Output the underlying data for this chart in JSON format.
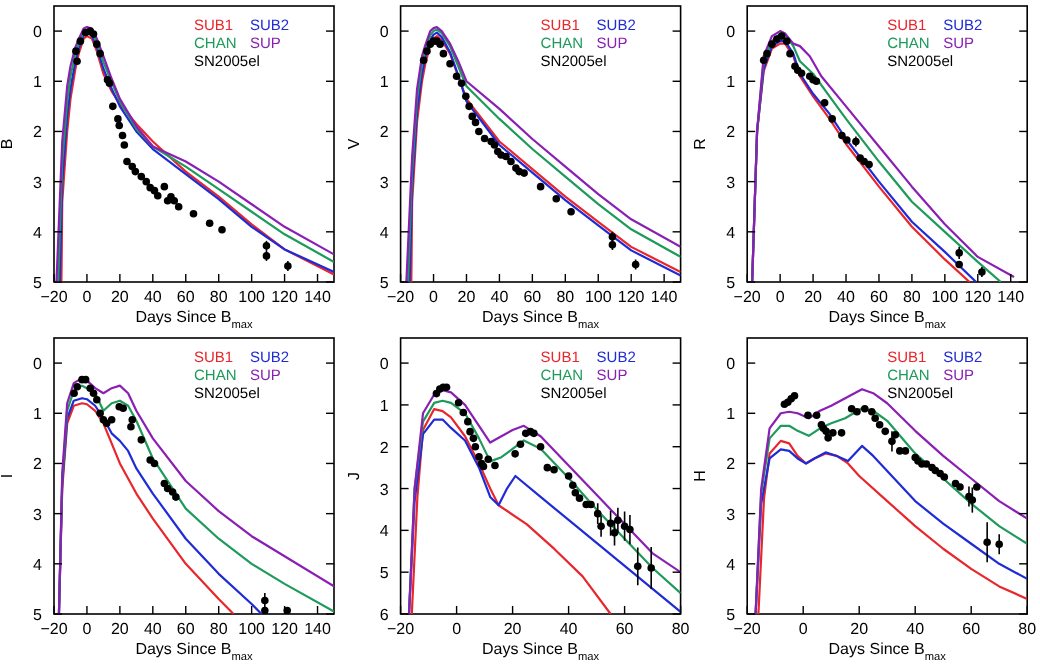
{
  "chart_data": [
    {
      "type": "line",
      "xlabel": "Days Since B$_{max}$",
      "ylabel": "B",
      "xlim": [
        -20,
        150
      ],
      "ylim": [
        5,
        -0.5
      ],
      "xticks": [
        -20,
        0,
        20,
        40,
        60,
        80,
        100,
        120,
        140
      ],
      "yticks": [
        0,
        1,
        2,
        3,
        4,
        5
      ],
      "legend": "top right",
      "series": [
        {
          "name": "SUB1",
          "color": "#e8262b",
          "x": [
            -15.5,
            -15,
            -12,
            -10,
            -7,
            -5,
            -2,
            0,
            3,
            6,
            10,
            15,
            20,
            30,
            40,
            60,
            80,
            100,
            120,
            150
          ],
          "values": [
            5,
            3.4,
            2.0,
            1.35,
            0.75,
            0.45,
            0.15,
            0.1,
            0.15,
            0.4,
            0.85,
            1.2,
            1.45,
            1.85,
            2.2,
            2.8,
            3.3,
            3.85,
            4.35,
            4.85
          ]
        },
        {
          "name": "SUB2",
          "color": "#1f2bd6",
          "x": [
            -16.5,
            -15,
            -12,
            -10,
            -7,
            -5,
            -2,
            0,
            3,
            6,
            10,
            15,
            20,
            30,
            40,
            60,
            80,
            100,
            120,
            150
          ],
          "values": [
            5,
            3.0,
            1.7,
            1.15,
            0.6,
            0.36,
            0.08,
            0.04,
            0.09,
            0.32,
            0.75,
            1.15,
            1.5,
            2.0,
            2.35,
            2.85,
            3.35,
            3.9,
            4.35,
            4.8
          ]
        },
        {
          "name": "CHAN",
          "color": "#1e9a5a",
          "x": [
            -17.5,
            -15,
            -12,
            -10,
            -7,
            -5,
            -2,
            0,
            3,
            6,
            10,
            15,
            20,
            30,
            40,
            60,
            80,
            100,
            120,
            150
          ],
          "values": [
            5,
            2.6,
            1.4,
            0.9,
            0.45,
            0.26,
            0.02,
            -0.02,
            0.02,
            0.24,
            0.62,
            1.02,
            1.4,
            1.95,
            2.3,
            2.7,
            3.15,
            3.6,
            4.05,
            4.6
          ]
        },
        {
          "name": "SUP",
          "color": "#8a1fb4",
          "x": [
            -18.5,
            -15,
            -12,
            -10,
            -7,
            -5,
            -2,
            0,
            3,
            6,
            10,
            15,
            20,
            30,
            40,
            60,
            80,
            100,
            120,
            150
          ],
          "values": [
            5,
            2.2,
            1.1,
            0.7,
            0.32,
            0.16,
            -0.05,
            -0.08,
            -0.05,
            0.15,
            0.5,
            0.95,
            1.35,
            1.9,
            2.3,
            2.6,
            3.0,
            3.45,
            3.9,
            4.45
          ]
        },
        {
          "name": "SN2005el",
          "color": "#000000",
          "type": "scatter",
          "marker": "circle",
          "x": [
            -6.7,
            -6,
            -4,
            -0.8,
            2,
            4,
            6,
            8,
            12.5,
            13.7,
            15.7,
            18.8,
            19.6,
            21.6,
            22.7,
            24.3,
            27.5,
            29.4,
            33,
            36,
            38.4,
            41,
            43,
            47,
            49,
            51,
            53,
            55.7,
            64.7,
            74.5,
            82,
            109,
            109,
            122
          ],
          "values": [
            0.4,
            0.6,
            0.2,
            0.03,
            0,
            0.06,
            0.26,
            0.45,
            0.97,
            1.04,
            1.5,
            1.75,
            1.88,
            2.08,
            2.27,
            2.6,
            2.7,
            2.8,
            2.9,
            3.0,
            3.12,
            3.18,
            3.28,
            3.1,
            3.38,
            3.3,
            3.38,
            3.5,
            3.64,
            3.83,
            3.96,
            4.28,
            4.48,
            4.68
          ],
          "errors": [
            null,
            null,
            null,
            null,
            null,
            null,
            null,
            null,
            null,
            null,
            null,
            null,
            null,
            null,
            null,
            null,
            null,
            null,
            null,
            null,
            null,
            null,
            null,
            null,
            null,
            null,
            null,
            null,
            null,
            null,
            null,
            0.1,
            0.1,
            0.1
          ]
        }
      ]
    },
    {
      "type": "line",
      "xlabel": "Days Since B$_{max}$",
      "ylabel": "V",
      "xlim": [
        -20,
        150
      ],
      "ylim": [
        5,
        -0.5
      ],
      "xticks": [
        -20,
        0,
        20,
        40,
        60,
        80,
        100,
        120,
        140
      ],
      "yticks": [
        0,
        1,
        2,
        3,
        4,
        5
      ],
      "legend": "top right",
      "series": [
        {
          "name": "SUB1",
          "color": "#e8262b",
          "x": [
            -13.5,
            -13,
            -10,
            -7,
            -5,
            -2,
            0,
            2,
            5,
            10,
            15,
            20,
            40,
            60,
            80,
            100,
            120,
            150
          ],
          "values": [
            5,
            3.4,
            1.8,
            1.0,
            0.65,
            0.28,
            0.15,
            0.1,
            0.18,
            0.45,
            0.9,
            1.35,
            2.2,
            2.75,
            3.3,
            3.8,
            4.3,
            4.8
          ]
        },
        {
          "name": "SUB2",
          "color": "#1f2bd6",
          "x": [
            -14.5,
            -13,
            -10,
            -7,
            -5,
            -2,
            0,
            2,
            5,
            10,
            15,
            20,
            40,
            60,
            80,
            100,
            120,
            150
          ],
          "values": [
            5,
            3.1,
            1.6,
            0.85,
            0.52,
            0.18,
            0.07,
            0.03,
            0.12,
            0.42,
            0.88,
            1.4,
            2.27,
            2.82,
            3.37,
            3.87,
            4.37,
            4.87
          ]
        },
        {
          "name": "CHAN",
          "color": "#1e9a5a",
          "x": [
            -15.5,
            -13,
            -10,
            -7,
            -5,
            -2,
            0,
            2,
            5,
            10,
            15,
            20,
            40,
            60,
            80,
            100,
            120,
            150
          ],
          "values": [
            5,
            2.8,
            1.35,
            0.65,
            0.38,
            0.08,
            0,
            -0.03,
            0.04,
            0.3,
            0.7,
            1.1,
            1.75,
            2.35,
            2.9,
            3.45,
            3.95,
            4.5
          ]
        },
        {
          "name": "SUP",
          "color": "#8a1fb4",
          "x": [
            -16.5,
            -13,
            -10,
            -7,
            -5,
            -2,
            0,
            2,
            5,
            10,
            15,
            20,
            40,
            60,
            80,
            100,
            120,
            150
          ],
          "values": [
            5,
            2.5,
            1.15,
            0.5,
            0.28,
            0.0,
            -0.06,
            -0.08,
            0,
            0.25,
            0.6,
            1.0,
            1.55,
            2.15,
            2.7,
            3.25,
            3.75,
            4.3
          ]
        },
        {
          "name": "SN2005el",
          "color": "#000000",
          "type": "scatter",
          "marker": "circle",
          "x": [
            -6,
            -4,
            -2,
            0,
            2,
            4,
            6,
            10,
            14,
            17,
            19.6,
            21.6,
            23.5,
            25.5,
            27.5,
            31,
            35,
            37,
            39,
            41,
            44,
            47,
            50,
            52,
            55,
            65,
            74.5,
            83.5,
            108.6,
            108.6,
            122.7
          ],
          "values": [
            0.58,
            0.4,
            0.26,
            0.2,
            0.2,
            0.26,
            0.45,
            0.65,
            0.9,
            1.04,
            1.3,
            1.5,
            1.7,
            1.82,
            2.0,
            2.14,
            2.2,
            2.27,
            2.4,
            2.47,
            2.5,
            2.6,
            2.73,
            2.8,
            2.83,
            3.1,
            3.34,
            3.6,
            4.1,
            4.26,
            4.65
          ],
          "errors": [
            null,
            null,
            null,
            null,
            null,
            null,
            null,
            null,
            null,
            null,
            null,
            null,
            null,
            null,
            null,
            null,
            null,
            null,
            null,
            null,
            null,
            null,
            null,
            null,
            null,
            null,
            null,
            null,
            0.1,
            0.1,
            0.1
          ]
        }
      ]
    },
    {
      "type": "line",
      "xlabel": "Days Since B$_{max}$",
      "ylabel": "R",
      "xlim": [
        -20,
        150
      ],
      "ylim": [
        5,
        -0.5
      ],
      "xticks": [
        -20,
        0,
        20,
        40,
        60,
        80,
        100,
        120,
        140
      ],
      "yticks": [
        0,
        1,
        2,
        3,
        4,
        5
      ],
      "legend": "top right",
      "series": [
        {
          "name": "SUB1",
          "color": "#e8262b",
          "x": [
            -17,
            -14,
            -10,
            -5,
            0,
            3,
            8,
            12,
            20,
            30,
            40,
            60,
            80,
            100,
            115
          ],
          "values": [
            5,
            2,
            0.8,
            0.35,
            0.25,
            0.25,
            0.5,
            0.9,
            1.3,
            1.75,
            2.25,
            3.1,
            3.9,
            4.55,
            5
          ]
        },
        {
          "name": "SUB2",
          "color": "#1f2bd6",
          "x": [
            -17,
            -14,
            -10,
            -5,
            0,
            3,
            8,
            12,
            20,
            30,
            40,
            60,
            80,
            100,
            119
          ],
          "values": [
            5,
            2,
            0.75,
            0.3,
            0.2,
            0.2,
            0.45,
            0.85,
            1.25,
            1.65,
            2.15,
            3.0,
            3.8,
            4.4,
            5
          ]
        },
        {
          "name": "CHAN",
          "color": "#1e9a5a",
          "x": [
            -17,
            -14,
            -10,
            -5,
            0,
            3,
            8,
            12,
            20,
            30,
            40,
            60,
            80,
            100,
            120,
            134
          ],
          "values": [
            5,
            2,
            0.6,
            0.2,
            0.05,
            0.05,
            0.3,
            0.6,
            0.85,
            1.3,
            1.75,
            2.6,
            3.4,
            4.0,
            4.6,
            5
          ]
        },
        {
          "name": "SUP",
          "color": "#8a1fb4",
          "x": [
            -17,
            -14,
            -10,
            -5,
            0,
            3,
            8,
            12,
            18,
            25,
            40,
            60,
            80,
            100,
            120,
            142
          ],
          "values": [
            5,
            2,
            0.5,
            0.1,
            0,
            0.05,
            0.25,
            0.3,
            0.5,
            0.9,
            1.5,
            2.3,
            3.1,
            3.85,
            4.5,
            4.9
          ]
        },
        {
          "name": "SN2005el",
          "color": "#000000",
          "type": "scatter",
          "marker": "circle",
          "x": [
            -10,
            -8,
            -5,
            -2,
            1,
            4,
            6,
            9,
            10.7,
            13,
            18,
            20,
            22,
            27,
            31.6,
            37.5,
            40.5,
            46,
            48.6,
            51,
            54,
            108.7,
            108.7,
            122.5
          ],
          "values": [
            0.58,
            0.45,
            0.26,
            0.16,
            0.1,
            0.2,
            0.45,
            0.7,
            0.78,
            0.84,
            0.9,
            0.97,
            1.0,
            1.43,
            1.75,
            2.08,
            2.17,
            2.2,
            2.53,
            2.6,
            2.66,
            4.42,
            4.65,
            4.8
          ],
          "errors": [
            null,
            null,
            null,
            null,
            null,
            null,
            null,
            null,
            null,
            null,
            null,
            null,
            null,
            null,
            null,
            null,
            null,
            0.1,
            null,
            null,
            null,
            0.12,
            null,
            0.1
          ]
        }
      ]
    },
    {
      "type": "line",
      "xlabel": "Days Since B$_{max}$",
      "ylabel": "I",
      "xlim": [
        -20,
        150
      ],
      "ylim": [
        5,
        -0.5
      ],
      "xticks": [
        -20,
        0,
        20,
        40,
        60,
        80,
        100,
        120,
        140
      ],
      "yticks": [
        0,
        1,
        2,
        3,
        4,
        5
      ],
      "legend": "top right",
      "series": [
        {
          "name": "SUB1",
          "color": "#e8262b",
          "x": [
            -17,
            -15,
            -12,
            -8,
            -3,
            0,
            5,
            10,
            20,
            30,
            40,
            60,
            80,
            89
          ],
          "values": [
            5,
            2.5,
            1.2,
            0.85,
            0.8,
            0.82,
            0.95,
            1.2,
            2.0,
            2.6,
            3.1,
            4.0,
            4.7,
            5
          ]
        },
        {
          "name": "SUB2",
          "color": "#1f2bd6",
          "x": [
            -17,
            -15,
            -12,
            -8,
            -3,
            0,
            5,
            10,
            15,
            20,
            25,
            30,
            40,
            60,
            80,
            100,
            106
          ],
          "values": [
            5,
            2.4,
            1.1,
            0.75,
            0.7,
            0.72,
            0.85,
            1.1,
            1.4,
            1.55,
            1.75,
            2.1,
            2.6,
            3.5,
            4.2,
            4.8,
            5
          ]
        },
        {
          "name": "CHAN",
          "color": "#1e9a5a",
          "x": [
            -17,
            -15,
            -12,
            -8,
            -3,
            0,
            5,
            10,
            15,
            20,
            25,
            30,
            40,
            60,
            80,
            100,
            120,
            150
          ],
          "values": [
            5,
            2.3,
            0.95,
            0.55,
            0.45,
            0.5,
            0.6,
            0.95,
            0.8,
            0.75,
            0.85,
            1.15,
            1.9,
            2.9,
            3.5,
            4.0,
            4.4,
            4.95
          ]
        },
        {
          "name": "SUP",
          "color": "#8a1fb4",
          "x": [
            -17,
            -15,
            -12,
            -8,
            -3,
            0,
            5,
            10,
            15,
            20,
            25,
            30,
            40,
            60,
            80,
            100,
            120,
            150
          ],
          "values": [
            5,
            2.2,
            0.8,
            0.4,
            0.3,
            0.35,
            0.5,
            0.6,
            0.5,
            0.45,
            0.6,
            0.95,
            1.5,
            2.35,
            2.95,
            3.45,
            3.85,
            4.45
          ]
        },
        {
          "name": "SN2005el",
          "color": "#000000",
          "type": "scatter",
          "marker": "circle",
          "x": [
            -7.8,
            -5.9,
            -3,
            -0.8,
            2,
            4,
            6,
            8,
            10,
            12,
            15,
            19.6,
            22,
            26.7,
            27.5,
            33,
            38.4,
            41,
            47,
            49,
            52,
            54,
            108,
            108,
            121.6
          ],
          "values": [
            0.6,
            0.47,
            0.33,
            0.33,
            0.5,
            0.6,
            0.73,
            1.0,
            1.13,
            1.2,
            1.13,
            0.87,
            0.9,
            1.27,
            1.13,
            1.53,
            1.93,
            2.0,
            2.4,
            2.5,
            2.57,
            2.67,
            4.73,
            4.93,
            4.93
          ],
          "errors": [
            null,
            null,
            null,
            null,
            null,
            null,
            null,
            null,
            null,
            null,
            null,
            null,
            null,
            null,
            null,
            null,
            null,
            null,
            null,
            null,
            null,
            null,
            0.15,
            null,
            null
          ]
        }
      ]
    },
    {
      "type": "line",
      "xlabel": "Days Since B$_{max}$",
      "ylabel": "J",
      "xlim": [
        -20,
        80
      ],
      "ylim": [
        6,
        -0.6
      ],
      "xticks": [
        -20,
        0,
        20,
        40,
        60,
        80
      ],
      "yticks": [
        0,
        1,
        2,
        3,
        4,
        5,
        6
      ],
      "legend": "top right",
      "series": [
        {
          "name": "SUB1",
          "color": "#e8262b",
          "x": [
            -16,
            -14,
            -12,
            -8,
            -5,
            -2,
            3,
            8,
            12,
            15,
            25,
            35,
            45,
            55
          ],
          "values": [
            6,
            3.2,
            1.6,
            1.1,
            1.15,
            1.3,
            1.75,
            2.4,
            3.0,
            3.4,
            3.85,
            4.45,
            5.1,
            6
          ]
        },
        {
          "name": "SUB2",
          "color": "#1f2bd6",
          "x": [
            -17,
            -15,
            -12,
            -8,
            -5,
            -2,
            3,
            8,
            12,
            15,
            18,
            21,
            30,
            40,
            50,
            60,
            70,
            80
          ],
          "values": [
            6,
            3.3,
            1.7,
            1.35,
            1.35,
            1.55,
            1.85,
            2.5,
            3.2,
            3.4,
            3.0,
            2.7,
            3.2,
            3.75,
            4.3,
            4.85,
            5.4,
            5.95
          ]
        },
        {
          "name": "CHAN",
          "color": "#1e9a5a",
          "x": [
            -17,
            -15,
            -12,
            -8,
            -5,
            -2,
            3,
            8,
            12,
            16,
            20,
            24,
            30,
            40,
            50,
            60,
            70,
            80
          ],
          "values": [
            6,
            3,
            1.4,
            0.95,
            0.9,
            0.95,
            1.2,
            1.8,
            2.35,
            2.25,
            2.05,
            1.85,
            2.05,
            2.75,
            3.5,
            4.2,
            4.9,
            5.5
          ]
        },
        {
          "name": "SUP",
          "color": "#8a1fb4",
          "x": [
            -17,
            -15,
            -12,
            -8,
            -5,
            -2,
            3,
            8,
            12,
            16,
            20,
            24,
            30,
            40,
            50,
            60,
            70,
            80
          ],
          "values": [
            6,
            3,
            1.2,
            0.75,
            0.65,
            0.7,
            1.0,
            1.5,
            1.9,
            1.75,
            1.6,
            1.5,
            1.75,
            2.45,
            3.15,
            3.85,
            4.55,
            5.0
          ]
        },
        {
          "name": "SN2005el",
          "color": "#000000",
          "type": "scatter",
          "marker": "circle",
          "x": [
            -7.2,
            -6,
            -4.8,
            -3.6,
            0.7,
            2.4,
            4,
            4.8,
            6,
            6.7,
            8,
            8.9,
            9.6,
            11.3,
            13.7,
            20.9,
            22.8,
            24.7,
            26.4,
            27.6,
            30,
            32.4,
            34.8,
            40,
            41.5,
            42.4,
            43.9,
            46.3,
            48,
            50.4,
            51.6,
            55,
            56.4,
            57.6,
            60,
            61.9,
            64.7,
            69.5
          ],
          "values": [
            0.73,
            0.62,
            0.58,
            0.58,
            0.95,
            1.18,
            1.4,
            1.64,
            1.8,
            2.0,
            2.24,
            2.4,
            2.47,
            2.3,
            2.45,
            2.17,
            1.94,
            1.68,
            1.64,
            1.68,
            2.0,
            2.5,
            2.55,
            2.7,
            2.92,
            3.1,
            3.23,
            3.38,
            3.38,
            3.6,
            3.9,
            3.83,
            4.06,
            3.76,
            3.9,
            3.98,
            4.86,
            4.9
          ],
          "errors": [
            null,
            null,
            null,
            null,
            null,
            null,
            null,
            null,
            null,
            null,
            null,
            null,
            null,
            null,
            null,
            null,
            null,
            null,
            null,
            null,
            null,
            null,
            null,
            null,
            null,
            null,
            null,
            null,
            null,
            0.25,
            0.25,
            0.3,
            0.3,
            0.3,
            0.35,
            0.35,
            0.45,
            0.5
          ]
        }
      ]
    },
    {
      "type": "line",
      "xlabel": "Days Since B$_{max}$",
      "ylabel": "H",
      "xlim": [
        -20,
        80
      ],
      "ylim": [
        5,
        -0.5
      ],
      "xticks": [
        -20,
        0,
        20,
        40,
        60,
        80
      ],
      "yticks": [
        0,
        1,
        2,
        3,
        4,
        5
      ],
      "legend": "top right",
      "series": [
        {
          "name": "SUB1",
          "color": "#e8262b",
          "x": [
            -16,
            -14,
            -12,
            -8,
            -5,
            -2,
            1,
            4,
            8,
            12,
            16,
            20,
            30,
            40,
            50,
            60,
            70,
            80
          ],
          "values": [
            5,
            2.7,
            1.8,
            1.55,
            1.6,
            1.85,
            2.0,
            1.9,
            1.8,
            1.85,
            2.0,
            2.25,
            2.75,
            3.25,
            3.7,
            4.1,
            4.45,
            4.7
          ]
        },
        {
          "name": "SUB2",
          "color": "#1f2bd6",
          "x": [
            -17,
            -15,
            -12,
            -8,
            -5,
            -2,
            1,
            4,
            8,
            12,
            16,
            21,
            25,
            30,
            40,
            50,
            60,
            70,
            80
          ],
          "values": [
            5,
            2.8,
            1.9,
            1.72,
            1.75,
            1.9,
            2.0,
            1.9,
            1.78,
            1.85,
            1.95,
            1.65,
            1.85,
            2.15,
            2.75,
            3.2,
            3.6,
            4.0,
            4.3
          ]
        },
        {
          "name": "CHAN",
          "color": "#1e9a5a",
          "x": [
            -17,
            -15,
            -12,
            -8,
            -5,
            -2,
            2,
            6,
            10,
            15,
            21,
            25,
            30,
            40,
            50,
            60,
            70,
            80
          ],
          "values": [
            5,
            2.6,
            1.5,
            1.25,
            1.25,
            1.35,
            1.45,
            1.3,
            1.2,
            1.1,
            0.9,
            0.95,
            1.15,
            1.8,
            2.3,
            2.8,
            3.25,
            3.6
          ]
        },
        {
          "name": "SUP",
          "color": "#8a1fb4",
          "x": [
            -17,
            -15,
            -12,
            -8,
            -5,
            -2,
            2,
            6,
            10,
            15,
            21,
            25,
            30,
            40,
            50,
            60,
            70,
            80
          ],
          "values": [
            5,
            2.5,
            1.3,
            1.0,
            0.97,
            1.0,
            1.1,
            0.95,
            0.85,
            0.7,
            0.52,
            0.6,
            0.8,
            1.35,
            1.85,
            2.3,
            2.75,
            3.1
          ]
        },
        {
          "name": "SN2005el",
          "color": "#000000",
          "type": "scatter",
          "marker": "circle",
          "x": [
            -6.7,
            -5.5,
            -4.3,
            -3.1,
            1.7,
            4.8,
            6.5,
            7.2,
            8.2,
            8.9,
            10.6,
            13.7,
            17.3,
            19.2,
            22,
            24.5,
            25.7,
            27.3,
            29.3,
            31.7,
            32.9,
            34.5,
            36.5,
            40,
            41,
            42.4,
            44,
            46,
            47.2,
            48.9,
            50.4,
            54.4,
            56,
            59.2,
            60.4,
            62,
            65.7,
            70
          ],
          "values": [
            0.82,
            0.78,
            0.71,
            0.65,
            1.04,
            1.04,
            1.23,
            1.3,
            1.36,
            1.49,
            1.39,
            1.39,
            0.91,
            0.97,
            0.91,
            0.97,
            1.1,
            1.23,
            1.36,
            1.56,
            1.43,
            1.75,
            1.75,
            1.88,
            1.95,
            2.01,
            2.01,
            2.08,
            2.14,
            2.2,
            2.27,
            2.4,
            2.47,
            2.66,
            2.73,
            2.47,
            3.57,
            3.61
          ],
          "errors": [
            null,
            null,
            null,
            null,
            null,
            null,
            null,
            null,
            null,
            null,
            null,
            null,
            null,
            null,
            null,
            null,
            null,
            null,
            null,
            0.2,
            null,
            null,
            null,
            null,
            null,
            null,
            null,
            null,
            null,
            null,
            null,
            null,
            null,
            0.2,
            0.25,
            null,
            0.4,
            0.2
          ]
        }
      ]
    }
  ]
}
